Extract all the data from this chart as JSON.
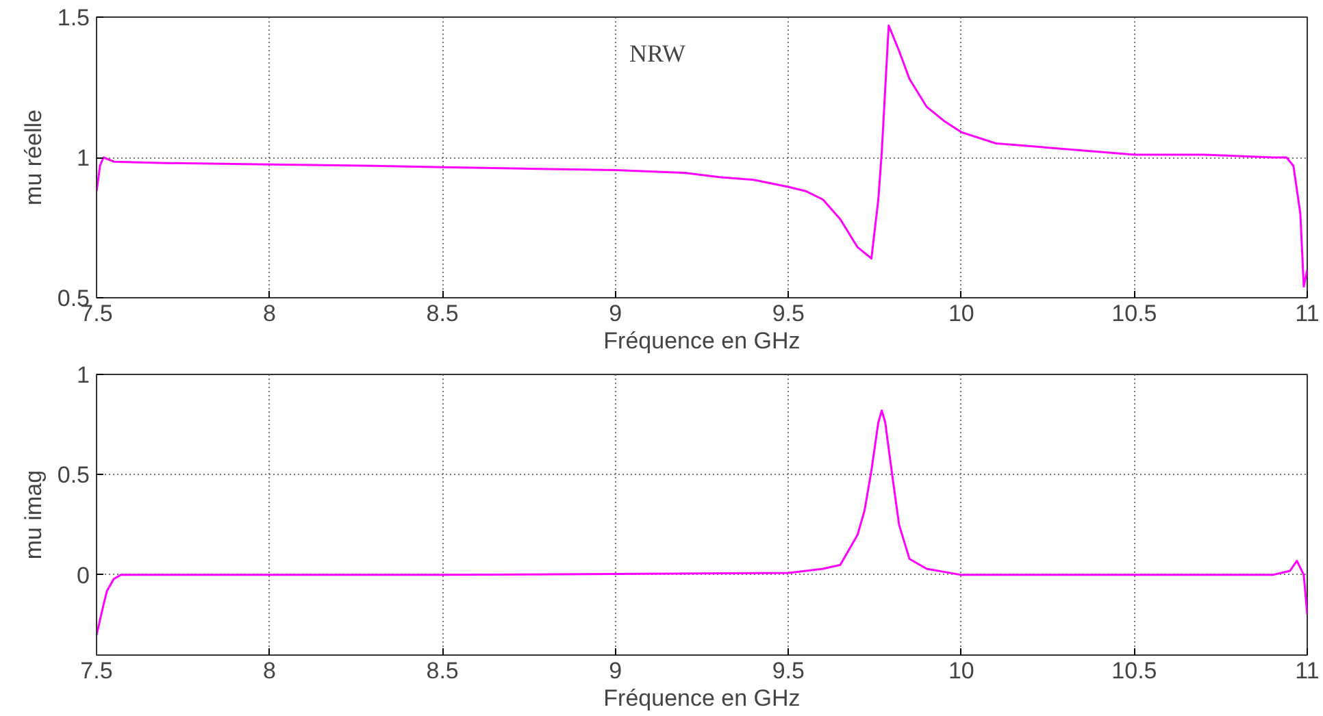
{
  "chart_data": [
    {
      "type": "line",
      "xlabel": "Fréquence en GHz",
      "ylabel": "mu réelle",
      "annotations": [
        "NRW"
      ],
      "grid": true,
      "xlim": [
        7.5,
        11
      ],
      "ylim": [
        0.5,
        1.5
      ],
      "xticks": [
        7.5,
        8,
        8.5,
        9,
        9.5,
        10,
        10.5,
        11
      ],
      "yticks": [
        0.5,
        1,
        1.5
      ],
      "series": [
        {
          "color": "#ff00ff",
          "x": [
            7.5,
            7.51,
            7.52,
            7.55,
            7.7,
            8,
            8.3,
            8.5,
            8.75,
            9,
            9.2,
            9.3,
            9.4,
            9.5,
            9.55,
            9.6,
            9.65,
            9.7,
            9.74,
            9.76,
            9.77,
            9.79,
            9.82,
            9.85,
            9.9,
            9.95,
            10,
            10.1,
            10.2,
            10.3,
            10.5,
            10.7,
            10.9,
            10.94,
            10.96,
            10.98,
            10.99,
            11
          ],
          "values": [
            0.88,
            0.97,
            1.0,
            0.985,
            0.98,
            0.975,
            0.97,
            0.965,
            0.96,
            0.955,
            0.945,
            0.93,
            0.92,
            0.895,
            0.88,
            0.85,
            0.78,
            0.68,
            0.64,
            0.85,
            1.02,
            1.47,
            1.38,
            1.28,
            1.18,
            1.13,
            1.09,
            1.05,
            1.04,
            1.03,
            1.01,
            1.01,
            1.0,
            1.0,
            0.97,
            0.8,
            0.54,
            0.6
          ]
        }
      ]
    },
    {
      "type": "line",
      "xlabel": "Fréquence en GHz",
      "ylabel": "mu imag",
      "grid": true,
      "xlim": [
        7.5,
        11
      ],
      "ylim": [
        -0.4,
        1
      ],
      "xticks": [
        7.5,
        8,
        8.5,
        9,
        9.5,
        10,
        10.5,
        11
      ],
      "yticks": [
        0,
        0.5,
        1
      ],
      "series": [
        {
          "color": "#ff00ff",
          "x": [
            7.5,
            7.52,
            7.53,
            7.55,
            7.57,
            8,
            8.5,
            9,
            9.5,
            9.6,
            9.65,
            9.7,
            9.72,
            9.74,
            9.76,
            9.77,
            9.78,
            9.8,
            9.82,
            9.85,
            9.9,
            10,
            10.5,
            10.9,
            10.95,
            10.97,
            10.99,
            11
          ],
          "values": [
            -0.3,
            -0.15,
            -0.08,
            -0.02,
            0,
            0,
            0,
            0.005,
            0.01,
            0.03,
            0.05,
            0.2,
            0.32,
            0.52,
            0.76,
            0.82,
            0.76,
            0.5,
            0.25,
            0.08,
            0.03,
            0,
            0,
            0,
            0.02,
            0.07,
            0,
            -0.2
          ]
        }
      ]
    }
  ]
}
